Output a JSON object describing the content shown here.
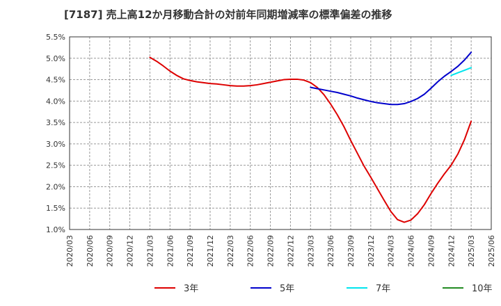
{
  "title": "[7187]  売上高12か月移動合計の対前年同期増減率の標準偏差の推移",
  "chart_data": {
    "type": "line",
    "title": "[7187]  売上高12か月移動合計の対前年同期増減率の標準偏差の推移",
    "xlabel": "",
    "ylabel": "",
    "ylim": [
      1.0,
      5.5
    ],
    "yticks": [
      "1.0%",
      "1.5%",
      "2.0%",
      "2.5%",
      "3.0%",
      "3.5%",
      "4.0%",
      "4.5%",
      "5.0%",
      "5.5%"
    ],
    "x": [
      "2020/03",
      "2020/06",
      "2020/09",
      "2020/12",
      "2021/03",
      "2021/06",
      "2021/09",
      "2021/12",
      "2022/03",
      "2022/06",
      "2022/09",
      "2022/12",
      "2023/03",
      "2023/06",
      "2023/09",
      "2023/12",
      "2024/03",
      "2024/06",
      "2024/09",
      "2024/12",
      "2025/03",
      "2025/06"
    ],
    "grid": true,
    "legend_position": "bottom",
    "series": [
      {
        "name": "3年",
        "color": "#dd0000",
        "points": [
          [
            "2021/03",
            5.02
          ],
          [
            "2021/04",
            4.93
          ],
          [
            "2021/05",
            4.82
          ],
          [
            "2021/06",
            4.7
          ],
          [
            "2021/07",
            4.6
          ],
          [
            "2021/08",
            4.52
          ],
          [
            "2021/09",
            4.48
          ],
          [
            "2021/10",
            4.45
          ],
          [
            "2021/11",
            4.43
          ],
          [
            "2021/12",
            4.41
          ],
          [
            "2022/01",
            4.4
          ],
          [
            "2022/02",
            4.38
          ],
          [
            "2022/03",
            4.36
          ],
          [
            "2022/04",
            4.35
          ],
          [
            "2022/05",
            4.35
          ],
          [
            "2022/06",
            4.36
          ],
          [
            "2022/07",
            4.38
          ],
          [
            "2022/08",
            4.41
          ],
          [
            "2022/09",
            4.44
          ],
          [
            "2022/10",
            4.47
          ],
          [
            "2022/11",
            4.5
          ],
          [
            "2022/12",
            4.51
          ],
          [
            "2023/01",
            4.51
          ],
          [
            "2023/02",
            4.49
          ],
          [
            "2023/03",
            4.43
          ],
          [
            "2023/04",
            4.32
          ],
          [
            "2023/05",
            4.15
          ],
          [
            "2023/06",
            3.93
          ],
          [
            "2023/07",
            3.68
          ],
          [
            "2023/08",
            3.4
          ],
          [
            "2023/09",
            3.08
          ],
          [
            "2023/10",
            2.78
          ],
          [
            "2023/11",
            2.48
          ],
          [
            "2023/12",
            2.22
          ],
          [
            "2024/01",
            1.95
          ],
          [
            "2024/02",
            1.68
          ],
          [
            "2024/03",
            1.42
          ],
          [
            "2024/04",
            1.23
          ],
          [
            "2024/05",
            1.17
          ],
          [
            "2024/06",
            1.22
          ],
          [
            "2024/07",
            1.37
          ],
          [
            "2024/08",
            1.58
          ],
          [
            "2024/09",
            1.84
          ],
          [
            "2024/10",
            2.08
          ],
          [
            "2024/11",
            2.3
          ],
          [
            "2024/12",
            2.5
          ],
          [
            "2025/01",
            2.76
          ],
          [
            "2025/02",
            3.1
          ],
          [
            "2025/03",
            3.53
          ]
        ]
      },
      {
        "name": "5年",
        "color": "#0000cc",
        "points": [
          [
            "2023/03",
            4.32
          ],
          [
            "2023/04",
            4.29
          ],
          [
            "2023/05",
            4.26
          ],
          [
            "2023/06",
            4.23
          ],
          [
            "2023/07",
            4.2
          ],
          [
            "2023/08",
            4.16
          ],
          [
            "2023/09",
            4.12
          ],
          [
            "2023/10",
            4.07
          ],
          [
            "2023/11",
            4.03
          ],
          [
            "2023/12",
            3.99
          ],
          [
            "2024/01",
            3.96
          ],
          [
            "2024/02",
            3.94
          ],
          [
            "2024/03",
            3.92
          ],
          [
            "2024/04",
            3.92
          ],
          [
            "2024/05",
            3.94
          ],
          [
            "2024/06",
            3.99
          ],
          [
            "2024/07",
            4.06
          ],
          [
            "2024/08",
            4.16
          ],
          [
            "2024/09",
            4.3
          ],
          [
            "2024/10",
            4.45
          ],
          [
            "2024/11",
            4.58
          ],
          [
            "2024/12",
            4.69
          ],
          [
            "2025/01",
            4.81
          ],
          [
            "2025/02",
            4.96
          ],
          [
            "2025/03",
            5.14
          ]
        ]
      },
      {
        "name": "7年",
        "color": "#00e5ee",
        "points": [
          [
            "2024/12",
            4.6
          ],
          [
            "2025/01",
            4.66
          ],
          [
            "2025/02",
            4.72
          ],
          [
            "2025/03",
            4.78
          ]
        ]
      },
      {
        "name": "10年",
        "color": "#228b22",
        "points": []
      }
    ]
  }
}
